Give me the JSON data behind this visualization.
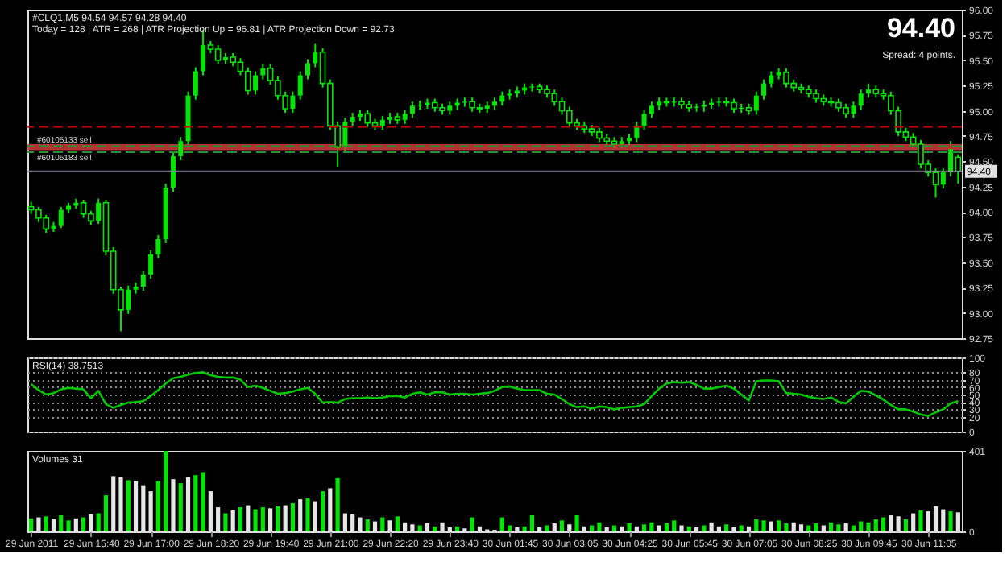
{
  "chart_data": [
    {
      "type": "candlestick",
      "title": "#CLQ1,M5 94.54 94.57 94.28 94.40",
      "subtitle": "Today = 128  |  ATR = 268  |  ATR Projection Up = 96.81  |  ATR Projection Down = 92.73",
      "annotations": [
        "94.40",
        "Spread: 4 points."
      ],
      "color": "#00e600",
      "tick_labels": "y",
      "categories": [
        "29 Jun 2011",
        null,
        null,
        null,
        null,
        null,
        null,
        null,
        "29 Jun 15:40",
        null,
        null,
        null,
        null,
        null,
        null,
        null,
        "29 Jun 17:00",
        null,
        null,
        null,
        null,
        null,
        null,
        null,
        "29 Jun 18:20",
        null,
        null,
        null,
        null,
        null,
        null,
        null,
        "29 Jun 19:40",
        null,
        null,
        null,
        null,
        null,
        null,
        null,
        "29 Jun 21:00",
        null,
        null,
        null,
        null,
        null,
        null,
        null,
        "29 Jun 22:20",
        null,
        null,
        null,
        null,
        null,
        null,
        null,
        "29 Jun 23:40",
        null,
        null,
        null,
        null,
        null,
        null,
        null,
        "30 Jun 01:45",
        null,
        null,
        null,
        null,
        null,
        null,
        null,
        "30 Jun 03:05",
        null,
        null,
        null,
        null,
        null,
        null,
        null,
        "30 Jun 04:25",
        null,
        null,
        null,
        null,
        null,
        null,
        null,
        "30 Jun 05:45",
        null,
        null,
        null,
        null,
        null,
        null,
        null,
        "30 Jun 07:05",
        null,
        null,
        null,
        null,
        null,
        null,
        null,
        "30 Jun 08:25",
        null,
        null,
        null,
        null,
        null,
        null,
        null,
        "30 Jun 09:45",
        null,
        null,
        null,
        null,
        null,
        null,
        null,
        "30 Jun 11:05",
        null,
        null,
        null,
        null
      ],
      "ohlc": [
        [
          94.05,
          94.1,
          93.98,
          94.02
        ],
        [
          94.02,
          94.05,
          93.9,
          93.94
        ],
        [
          93.94,
          93.97,
          93.79,
          93.83
        ],
        [
          93.83,
          93.9,
          93.8,
          93.86
        ],
        [
          93.86,
          94.05,
          93.84,
          94.02
        ],
        [
          94.02,
          94.09,
          93.99,
          94.06
        ],
        [
          94.06,
          94.13,
          94.03,
          94.09
        ],
        [
          94.09,
          94.12,
          93.94,
          93.98
        ],
        [
          93.98,
          94.01,
          93.87,
          93.91
        ],
        [
          93.91,
          94.13,
          93.88,
          94.09
        ],
        [
          94.09,
          94.12,
          93.57,
          93.61
        ],
        [
          93.61,
          93.65,
          93.19,
          93.23
        ],
        [
          93.23,
          93.26,
          92.82,
          93.03
        ],
        [
          93.03,
          93.27,
          92.99,
          93.23
        ],
        [
          93.23,
          93.3,
          93.19,
          93.26
        ],
        [
          93.26,
          93.42,
          93.22,
          93.38
        ],
        [
          93.38,
          93.62,
          93.34,
          93.58
        ],
        [
          93.58,
          93.77,
          93.54,
          93.73
        ],
        [
          93.73,
          94.28,
          93.69,
          94.24
        ],
        [
          94.24,
          94.59,
          94.2,
          94.55
        ],
        [
          94.55,
          94.74,
          94.51,
          94.7
        ],
        [
          94.7,
          95.19,
          94.66,
          95.15
        ],
        [
          95.15,
          95.43,
          95.11,
          95.39
        ],
        [
          95.39,
          95.8,
          95.35,
          95.65
        ],
        [
          95.65,
          95.69,
          95.57,
          95.61
        ],
        [
          95.61,
          95.65,
          95.46,
          95.5
        ],
        [
          95.5,
          95.57,
          95.46,
          95.53
        ],
        [
          95.53,
          95.57,
          95.44,
          95.48
        ],
        [
          95.48,
          95.52,
          95.35,
          95.39
        ],
        [
          95.39,
          95.43,
          95.16,
          95.2
        ],
        [
          95.2,
          95.39,
          95.16,
          95.35
        ],
        [
          95.35,
          95.46,
          95.31,
          95.42
        ],
        [
          95.42,
          95.46,
          95.26,
          95.3
        ],
        [
          95.3,
          95.34,
          95.11,
          95.15
        ],
        [
          95.15,
          95.19,
          94.98,
          95.02
        ],
        [
          95.02,
          95.19,
          94.98,
          95.15
        ],
        [
          95.15,
          95.39,
          95.11,
          95.35
        ],
        [
          95.35,
          95.51,
          95.31,
          95.47
        ],
        [
          95.47,
          95.66,
          95.43,
          95.58
        ],
        [
          95.58,
          95.62,
          95.23,
          95.27
        ],
        [
          95.27,
          95.31,
          94.81,
          94.85
        ],
        [
          94.85,
          94.89,
          94.44,
          94.64
        ],
        [
          94.64,
          94.93,
          94.6,
          94.89
        ],
        [
          94.89,
          94.98,
          94.85,
          94.94
        ],
        [
          94.94,
          95.01,
          94.9,
          94.97
        ],
        [
          94.97,
          95.01,
          94.84,
          94.88
        ],
        [
          94.88,
          94.92,
          94.81,
          94.85
        ],
        [
          94.85,
          94.95,
          94.81,
          94.91
        ],
        [
          94.91,
          94.98,
          94.87,
          94.94
        ],
        [
          94.94,
          94.98,
          94.87,
          94.91
        ],
        [
          94.91,
          95.01,
          94.87,
          94.97
        ],
        [
          94.97,
          95.09,
          94.93,
          95.05
        ],
        [
          95.05,
          95.1,
          95.01,
          95.06
        ],
        [
          95.06,
          95.12,
          95.02,
          95.08
        ],
        [
          95.08,
          95.12,
          94.99,
          95.03
        ],
        [
          95.03,
          95.07,
          94.96,
          95.0
        ],
        [
          95.0,
          95.09,
          94.96,
          95.05
        ],
        [
          95.05,
          95.12,
          95.01,
          95.08
        ],
        [
          95.08,
          95.13,
          95.04,
          95.09
        ],
        [
          95.09,
          95.13,
          94.99,
          95.03
        ],
        [
          95.03,
          95.07,
          94.98,
          95.02
        ],
        [
          95.02,
          95.09,
          94.98,
          95.05
        ],
        [
          95.05,
          95.13,
          95.01,
          95.09
        ],
        [
          95.09,
          95.19,
          95.05,
          95.15
        ],
        [
          95.15,
          95.21,
          95.11,
          95.17
        ],
        [
          95.17,
          95.24,
          95.13,
          95.2
        ],
        [
          95.2,
          95.27,
          95.16,
          95.23
        ],
        [
          95.23,
          95.27,
          95.19,
          95.24
        ],
        [
          95.24,
          95.27,
          95.17,
          95.21
        ],
        [
          95.21,
          95.25,
          95.13,
          95.17
        ],
        [
          95.17,
          95.21,
          95.05,
          95.09
        ],
        [
          95.09,
          95.13,
          94.96,
          95.0
        ],
        [
          95.0,
          95.04,
          94.84,
          94.88
        ],
        [
          94.88,
          94.92,
          94.81,
          94.85
        ],
        [
          94.85,
          94.89,
          94.78,
          94.82
        ],
        [
          94.82,
          94.86,
          94.75,
          94.79
        ],
        [
          94.79,
          94.83,
          94.69,
          94.73
        ],
        [
          94.73,
          94.77,
          94.66,
          94.7
        ],
        [
          94.7,
          94.74,
          94.63,
          94.67
        ],
        [
          94.67,
          94.74,
          94.63,
          94.7
        ],
        [
          94.7,
          94.77,
          94.66,
          94.73
        ],
        [
          94.73,
          94.89,
          94.69,
          94.85
        ],
        [
          94.85,
          95.01,
          94.81,
          94.97
        ],
        [
          94.97,
          95.09,
          94.93,
          95.05
        ],
        [
          95.05,
          95.13,
          95.01,
          95.09
        ],
        [
          95.09,
          95.13,
          95.04,
          95.08
        ],
        [
          95.08,
          95.13,
          95.04,
          95.09
        ],
        [
          95.09,
          95.13,
          95.02,
          95.06
        ],
        [
          95.06,
          95.1,
          94.99,
          95.03
        ],
        [
          95.03,
          95.07,
          94.99,
          95.04
        ],
        [
          95.04,
          95.1,
          94.99,
          95.06
        ],
        [
          95.06,
          95.12,
          95.02,
          95.08
        ],
        [
          95.08,
          95.13,
          95.04,
          95.09
        ],
        [
          95.09,
          95.13,
          95.04,
          95.08
        ],
        [
          95.08,
          95.12,
          94.98,
          95.02
        ],
        [
          95.02,
          95.07,
          94.98,
          95.03
        ],
        [
          95.03,
          95.07,
          94.96,
          95.0
        ],
        [
          95.0,
          95.19,
          94.96,
          95.15
        ],
        [
          95.15,
          95.31,
          95.11,
          95.27
        ],
        [
          95.27,
          95.39,
          95.23,
          95.35
        ],
        [
          95.35,
          95.42,
          95.31,
          95.38
        ],
        [
          95.38,
          95.42,
          95.23,
          95.27
        ],
        [
          95.27,
          95.31,
          95.19,
          95.23
        ],
        [
          95.23,
          95.27,
          95.17,
          95.21
        ],
        [
          95.21,
          95.25,
          95.13,
          95.17
        ],
        [
          95.17,
          95.21,
          95.08,
          95.12
        ],
        [
          95.12,
          95.16,
          95.05,
          95.09
        ],
        [
          95.09,
          95.13,
          95.04,
          95.08
        ],
        [
          95.08,
          95.12,
          94.99,
          95.03
        ],
        [
          95.03,
          95.07,
          94.93,
          94.97
        ],
        [
          94.97,
          95.09,
          94.93,
          95.05
        ],
        [
          95.05,
          95.21,
          95.01,
          95.17
        ],
        [
          95.17,
          95.27,
          95.13,
          95.21
        ],
        [
          95.21,
          95.25,
          95.13,
          95.17
        ],
        [
          95.17,
          95.21,
          95.11,
          95.15
        ],
        [
          95.15,
          95.19,
          94.96,
          95.0
        ],
        [
          95.0,
          95.04,
          94.75,
          94.79
        ],
        [
          94.79,
          94.83,
          94.7,
          94.74
        ],
        [
          94.74,
          94.78,
          94.63,
          94.67
        ],
        [
          94.67,
          94.71,
          94.43,
          94.47
        ],
        [
          94.47,
          94.51,
          94.35,
          94.39
        ],
        [
          94.39,
          94.43,
          94.14,
          94.27
        ],
        [
          94.27,
          94.43,
          94.23,
          94.39
        ],
        [
          94.39,
          94.7,
          94.35,
          94.62
        ],
        [
          94.54,
          94.57,
          94.28,
          94.4
        ]
      ],
      "ylim": [
        92.75,
        96.0
      ],
      "yticks": [
        {
          "value": 92.75,
          "label": "92.75"
        },
        {
          "value": 93.0,
          "label": "93.00"
        },
        {
          "value": 93.25,
          "label": "93.25"
        },
        {
          "value": 93.5,
          "label": "93.50"
        },
        {
          "value": 93.75,
          "label": "93.75"
        },
        {
          "value": 94.0,
          "label": "94.00"
        },
        {
          "value": 94.25,
          "label": "94.25"
        },
        {
          "value": 94.5,
          "label": "94.50"
        },
        {
          "value": 94.75,
          "label": "94.75"
        },
        {
          "value": 95.0,
          "label": "95.00"
        },
        {
          "value": 95.25,
          "label": "95.25"
        },
        {
          "value": 95.5,
          "label": "95.50"
        },
        {
          "value": 95.75,
          "label": "95.75"
        },
        {
          "value": 96.0,
          "label": "96.00"
        }
      ],
      "bands": [
        {
          "axis": "y",
          "from": 94.61,
          "to": 94.67,
          "color": "#d23c3c"
        }
      ],
      "ref_lines": [
        {
          "axis": "y",
          "value": 94.84,
          "color": "#c80000",
          "line_style": "dashed"
        },
        {
          "axis": "y",
          "value": 94.65,
          "label": "#60105133 sell",
          "color": "#1e9632",
          "line_style": "dashed"
        },
        {
          "axis": "y",
          "value": 94.59,
          "label": "#60105183 sell",
          "color": "#1e9632",
          "line_style": "dashed"
        },
        {
          "axis": "y",
          "value": 94.4,
          "label": "94.40",
          "color": "#8c8c9c",
          "line_style": "solid"
        }
      ]
    },
    {
      "type": "line",
      "title": "RSI(14) 38.7513",
      "color": "#00c800",
      "tick_labels": "y",
      "grid": "y",
      "line_style": "solid",
      "categories": [
        "29 Jun 2011",
        null,
        null,
        null,
        null,
        null,
        null,
        null,
        "29 Jun 15:40",
        null,
        null,
        null,
        null,
        null,
        null,
        null,
        "29 Jun 17:00",
        null,
        null,
        null,
        null,
        null,
        null,
        null,
        "29 Jun 18:20",
        null,
        null,
        null,
        null,
        null,
        null,
        null,
        "29 Jun 19:40",
        null,
        null,
        null,
        null,
        null,
        null,
        null,
        "29 Jun 21:00",
        null,
        null,
        null,
        null,
        null,
        null,
        null,
        "29 Jun 22:20",
        null,
        null,
        null,
        null,
        null,
        null,
        null,
        "29 Jun 23:40",
        null,
        null,
        null,
        null,
        null,
        null,
        null,
        "30 Jun 01:45",
        null,
        null,
        null,
        null,
        null,
        null,
        null,
        "30 Jun 03:05",
        null,
        null,
        null,
        null,
        null,
        null,
        null,
        "30 Jun 04:25",
        null,
        null,
        null,
        null,
        null,
        null,
        null,
        "30 Jun 05:45",
        null,
        null,
        null,
        null,
        null,
        null,
        null,
        "30 Jun 07:05",
        null,
        null,
        null,
        null,
        null,
        null,
        null,
        "30 Jun 08:25",
        null,
        null,
        null,
        null,
        null,
        null,
        null,
        "30 Jun 09:45",
        null,
        null,
        null,
        null,
        null,
        null,
        null,
        "30 Jun 11:05",
        null,
        null,
        null,
        null
      ],
      "values": [
        64,
        56,
        50,
        52,
        57,
        59,
        58,
        57,
        45,
        55,
        37,
        32,
        36,
        39,
        40,
        41,
        48,
        56,
        65,
        72,
        74,
        77,
        79,
        80,
        76,
        74,
        73,
        73,
        70,
        60,
        62,
        59,
        55,
        51,
        52,
        54,
        57,
        59,
        51,
        39,
        40,
        39,
        44,
        45,
        45,
        46,
        45,
        46,
        48,
        48,
        46,
        51,
        53,
        50,
        53,
        53,
        50,
        51,
        51,
        50,
        51,
        52,
        55,
        60,
        61,
        58,
        56,
        56,
        56,
        51,
        50,
        44,
        37,
        33,
        34,
        31,
        34,
        33,
        30,
        32,
        33,
        34,
        37,
        48,
        58,
        65,
        67,
        66,
        67,
        63,
        58,
        58,
        60,
        62,
        58,
        50,
        42,
        68,
        69,
        69,
        68,
        52,
        51,
        50,
        47,
        45,
        44,
        46,
        40,
        38,
        47,
        55,
        54,
        49,
        43,
        36,
        30,
        30,
        27,
        23,
        21,
        26,
        30,
        38,
        41
      ],
      "ylim": [
        0,
        100
      ],
      "yticks": [
        0,
        20,
        30,
        40,
        50,
        60,
        70,
        80,
        100
      ]
    },
    {
      "type": "bar",
      "title": "Volumes 31",
      "categories": [
        "29 Jun 2011",
        null,
        null,
        null,
        null,
        null,
        null,
        null,
        "29 Jun 15:40",
        null,
        null,
        null,
        null,
        null,
        null,
        null,
        "29 Jun 17:00",
        null,
        null,
        null,
        null,
        null,
        null,
        null,
        "29 Jun 18:20",
        null,
        null,
        null,
        null,
        null,
        null,
        null,
        "29 Jun 19:40",
        null,
        null,
        null,
        null,
        null,
        null,
        null,
        "29 Jun 21:00",
        null,
        null,
        null,
        null,
        null,
        null,
        null,
        "29 Jun 22:20",
        null,
        null,
        null,
        null,
        null,
        null,
        null,
        "29 Jun 23:40",
        null,
        null,
        null,
        null,
        null,
        null,
        null,
        "30 Jun 01:45",
        null,
        null,
        null,
        null,
        null,
        null,
        null,
        "30 Jun 03:05",
        null,
        null,
        null,
        null,
        null,
        null,
        null,
        "30 Jun 04:25",
        null,
        null,
        null,
        null,
        null,
        null,
        null,
        "30 Jun 05:45",
        null,
        null,
        null,
        null,
        null,
        null,
        null,
        "30 Jun 07:05",
        null,
        null,
        null,
        null,
        null,
        null,
        null,
        "30 Jun 08:25",
        null,
        null,
        null,
        null,
        null,
        null,
        null,
        "30 Jun 09:45",
        null,
        null,
        null,
        null,
        null,
        null,
        null,
        "30 Jun 11:05",
        null,
        null,
        null,
        null
      ],
      "values": [
        65,
        70,
        75,
        60,
        80,
        55,
        65,
        70,
        85,
        90,
        180,
        275,
        270,
        255,
        250,
        230,
        200,
        250,
        401,
        260,
        240,
        270,
        280,
        295,
        200,
        120,
        90,
        105,
        120,
        130,
        110,
        120,
        115,
        125,
        130,
        140,
        160,
        165,
        150,
        200,
        215,
        265,
        90,
        85,
        70,
        60,
        50,
        70,
        55,
        75,
        45,
        35,
        30,
        40,
        25,
        45,
        20,
        25,
        15,
        70,
        25,
        10,
        8,
        70,
        30,
        20,
        25,
        80,
        20,
        30,
        40,
        55,
        35,
        80,
        25,
        30,
        45,
        20,
        30,
        25,
        40,
        25,
        35,
        45,
        30,
        40,
        55,
        30,
        25,
        20,
        30,
        45,
        25,
        35,
        20,
        30,
        25,
        60,
        55,
        50,
        55,
        40,
        45,
        35,
        30,
        40,
        30,
        45,
        35,
        40,
        30,
        50,
        45,
        60,
        70,
        80,
        75,
        60,
        90,
        105,
        100,
        125,
        110,
        100,
        95
      ],
      "colors": [
        "#00e600",
        "#e6e6e6",
        "#00e600",
        "#e6e6e6",
        "#00e600",
        "#00e600",
        "#e6e6e6",
        "#00e600",
        "#e6e6e6",
        "#00e600",
        "#00e600",
        "#e6e6e6",
        "#e6e6e6",
        "#00e600",
        "#e6e6e6",
        "#e6e6e6",
        "#e6e6e6",
        "#00e600",
        "#00e600",
        "#e6e6e6",
        "#00e600",
        "#e6e6e6",
        "#00e600",
        "#00e600",
        "#e6e6e6",
        "#e6e6e6",
        "#00e600",
        "#e6e6e6",
        "#00e600",
        "#e6e6e6",
        "#00e600",
        "#00e600",
        "#e6e6e6",
        "#00e600",
        "#e6e6e6",
        "#00e600",
        "#e6e6e6",
        "#00e600",
        "#e6e6e6",
        "#00e600",
        "#e6e6e6",
        "#00e600",
        "#e6e6e6",
        "#e6e6e6",
        "#e6e6e6",
        "#00e600",
        "#e6e6e6",
        "#00e600",
        "#e6e6e6",
        "#00e600",
        "#e6e6e6",
        "#e6e6e6",
        "#00e600",
        "#e6e6e6",
        "#00e600",
        "#e6e6e6",
        "#e6e6e6",
        "#00e600",
        "#e6e6e6",
        "#00e600",
        "#e6e6e6",
        "#e6e6e6",
        "#e6e6e6",
        "#00e600",
        "#00e600",
        "#e6e6e6",
        "#00e600",
        "#00e600",
        "#e6e6e6",
        "#00e600",
        "#e6e6e6",
        "#00e600",
        "#e6e6e6",
        "#00e600",
        "#e6e6e6",
        "#00e600",
        "#00e600",
        "#e6e6e6",
        "#00e600",
        "#e6e6e6",
        "#00e600",
        "#e6e6e6",
        "#00e600",
        "#00e600",
        "#e6e6e6",
        "#00e600",
        "#00e600",
        "#e6e6e6",
        "#00e600",
        "#e6e6e6",
        "#00e600",
        "#e6e6e6",
        "#e6e6e6",
        "#00e600",
        "#e6e6e6",
        "#00e600",
        "#e6e6e6",
        "#00e600",
        "#00e600",
        "#e6e6e6",
        "#00e600",
        "#00e600",
        "#e6e6e6",
        "#e6e6e6",
        "#00e600",
        "#00e600",
        "#e6e6e6",
        "#00e600",
        "#00e600",
        "#e6e6e6",
        "#00e600",
        "#00e600",
        "#00e600",
        "#00e600",
        "#00e600",
        "#e6e6e6",
        "#e6e6e6",
        "#00e600",
        "#e6e6e6",
        "#00e600",
        "#e6e6e6",
        "#e6e6e6",
        "#e6e6e6",
        "#00e600",
        "#e6e6e6"
      ],
      "ylim": [
        0,
        401
      ],
      "yticks": [
        0,
        401
      ]
    }
  ]
}
